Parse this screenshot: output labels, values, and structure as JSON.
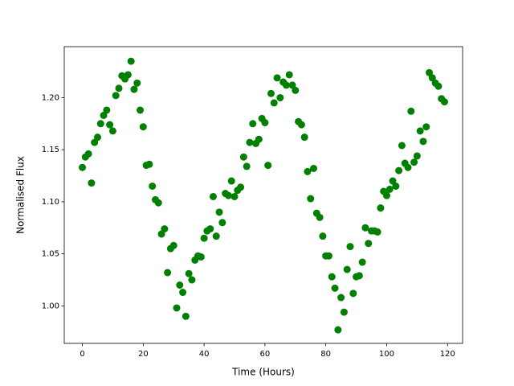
{
  "chart_data": {
    "type": "scatter",
    "xlabel": "Time (Hours)",
    "ylabel": "Normalised Flux",
    "color": "#008000",
    "x": [
      0,
      1,
      2,
      3,
      4,
      5,
      6,
      7,
      8,
      9,
      10,
      11,
      12,
      13,
      14,
      15,
      16,
      17,
      18,
      19,
      20,
      21,
      22,
      23,
      24,
      25,
      26,
      27,
      28,
      29,
      30,
      31,
      32,
      33,
      34,
      35,
      36,
      37,
      38,
      39,
      40,
      41,
      42,
      43,
      44,
      45,
      46,
      47,
      48,
      49,
      50,
      51,
      52,
      53,
      54,
      55,
      56,
      57,
      58,
      59,
      60,
      61,
      62,
      63,
      64,
      65,
      66,
      67,
      68,
      69,
      70,
      71,
      72,
      73,
      74,
      75,
      76,
      77,
      78,
      79,
      80,
      81,
      82,
      83,
      84,
      85,
      86,
      87,
      88,
      89,
      90,
      91,
      92,
      93,
      94,
      95,
      96,
      97,
      98,
      99,
      100,
      101,
      102,
      103,
      104,
      105,
      106,
      107,
      108,
      109,
      110,
      111,
      112,
      113,
      114,
      115,
      116,
      117,
      118,
      119
    ],
    "values": [
      1.133,
      1.143,
      1.146,
      1.118,
      1.157,
      1.162,
      1.175,
      1.183,
      1.188,
      1.174,
      1.168,
      1.202,
      1.209,
      1.221,
      1.218,
      1.222,
      1.235,
      1.208,
      1.214,
      1.188,
      1.172,
      1.135,
      1.136,
      1.115,
      1.102,
      1.099,
      1.069,
      1.074,
      1.032,
      1.055,
      1.058,
      0.998,
      1.02,
      1.013,
      0.99,
      1.031,
      1.025,
      1.044,
      1.048,
      1.047,
      1.065,
      1.072,
      1.074,
      1.105,
      1.067,
      1.09,
      1.08,
      1.108,
      1.106,
      1.12,
      1.105,
      1.111,
      1.114,
      1.143,
      1.134,
      1.157,
      1.175,
      1.156,
      1.16,
      1.18,
      1.176,
      1.135,
      1.204,
      1.195,
      1.219,
      1.2,
      1.215,
      1.212,
      1.222,
      1.212,
      1.207,
      1.177,
      1.174,
      1.162,
      1.129,
      1.103,
      1.132,
      1.089,
      1.085,
      1.067,
      1.048,
      1.048,
      1.028,
      1.017,
      0.977,
      1.008,
      0.994,
      1.035,
      1.057,
      1.012,
      1.028,
      1.029,
      1.042,
      1.075,
      1.06,
      1.072,
      1.072,
      1.071,
      1.094,
      1.11,
      1.106,
      1.112,
      1.12,
      1.115,
      1.13,
      1.154,
      1.137,
      1.133,
      1.187,
      1.138,
      1.144,
      1.168,
      1.158,
      1.172,
      1.224,
      1.219,
      1.214,
      1.211,
      1.199,
      1.196
    ],
    "xlim": [
      -5.95,
      124.95
    ],
    "xticks": [
      0,
      20,
      40,
      60,
      80,
      100,
      120
    ],
    "ylim": [
      0.964,
      1.249
    ],
    "yticks": [
      {
        "value": 1,
        "label": "1.00"
      },
      1.05,
      {
        "value": 1.1,
        "label": "1.10"
      },
      1.15,
      {
        "value": 1.2,
        "label": "1.20"
      }
    ]
  }
}
